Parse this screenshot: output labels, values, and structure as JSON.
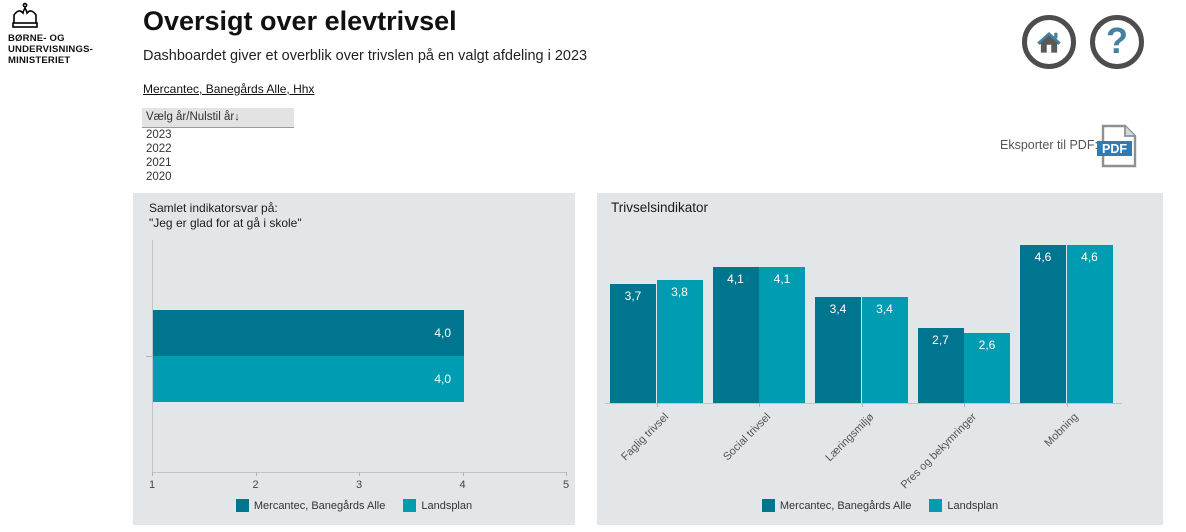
{
  "logo": {
    "ministry_name_lines": [
      "BØRNE- OG",
      "UNDERVISNINGS-",
      "MINISTERIET"
    ]
  },
  "header": {
    "title": "Oversigt over elevtrivsel",
    "subtitle": "Dashboardet giver et overblik over trivslen på en valgt afdeling i 2023",
    "department_link": "Mercantec, Banegårds Alle, Hhx"
  },
  "year_filter": {
    "label": "Vælg år/Nulstil år",
    "arrow": "↓",
    "options": [
      "2023",
      "2022",
      "2021",
      "2020"
    ]
  },
  "toolbar": {
    "export_label": "Eksporter til PDF:",
    "pdf_icon_text": "PDF"
  },
  "legend": {
    "school": "Mercantec, Banegårds Alle",
    "national": "Landsplan"
  },
  "colors": {
    "series1": "#00758f",
    "series2": "#009db2",
    "icon_accent": "#46809e",
    "pdf_blue": "#2f7cb5",
    "panel_bg": "#e3e6e8"
  },
  "chart_data": [
    {
      "type": "bar",
      "orientation": "horizontal",
      "title_lines": [
        "Samlet indikatorsvar på:",
        "\"Jeg er glad for at gå i skole\""
      ],
      "series": [
        {
          "name": "Mercantec, Banegårds Alle",
          "values": [
            4.0
          ],
          "labels": [
            "4,0"
          ]
        },
        {
          "name": "Landsplan",
          "values": [
            4.0
          ],
          "labels": [
            "4,0"
          ]
        }
      ],
      "xlim": [
        1,
        5
      ],
      "x_ticks": [
        "1",
        "2",
        "3",
        "4",
        "5"
      ],
      "legend_position": "bottom"
    },
    {
      "type": "bar",
      "orientation": "vertical",
      "title": "Trivselsindikator",
      "categories": [
        "Faglig trivsel",
        "Social trivsel",
        "Læringsmiljø",
        "Pres og bekymringer",
        "Mobning"
      ],
      "series": [
        {
          "name": "Mercantec, Banegårds Alle",
          "values": [
            3.7,
            4.1,
            3.4,
            2.7,
            4.6
          ],
          "labels": [
            "3,7",
            "4,1",
            "3,4",
            "2,7",
            "4,6"
          ]
        },
        {
          "name": "Landsplan",
          "values": [
            3.8,
            4.1,
            3.4,
            2.6,
            4.6
          ],
          "labels": [
            "3,8",
            "4,1",
            "3,4",
            "2,6",
            "4,6"
          ]
        }
      ],
      "ylim": [
        1,
        5
      ],
      "legend_position": "bottom"
    }
  ]
}
